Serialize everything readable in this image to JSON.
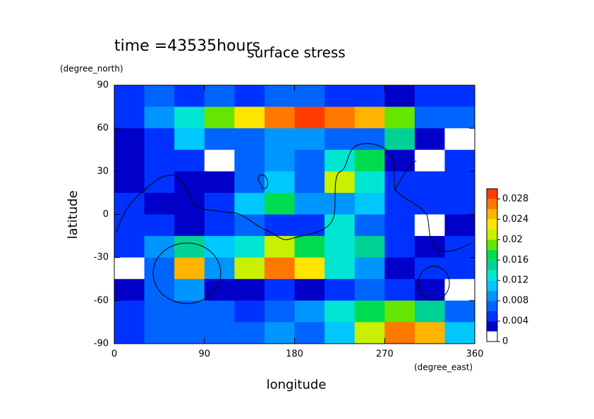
{
  "chart_data": {
    "type": "contour",
    "title": "surface stress",
    "annotation": "time =43535hours",
    "xlabel": "longitude",
    "ylabel": "latitude",
    "xunit": "(degree_east)",
    "yunit": "(degree_north)",
    "xlim": [
      0,
      360
    ],
    "xticks": [
      0,
      90,
      180,
      270,
      360
    ],
    "ylim": [
      -90,
      90
    ],
    "yticks": [
      -90,
      -60,
      -30,
      0,
      30,
      60,
      90
    ],
    "x": [
      15,
      45,
      75,
      105,
      135,
      165,
      195,
      225,
      255,
      285,
      315,
      345
    ],
    "y": [
      82.5,
      67.5,
      52.5,
      37.5,
      22.5,
      7.5,
      -7.5,
      -22.5,
      -37.5,
      -52.5,
      -67.5,
      -82.5
    ],
    "z": [
      [
        0.005,
        0.006,
        0.005,
        0.006,
        0.005,
        0.006,
        0.006,
        0.005,
        0.004,
        0.003,
        0.004,
        0.005
      ],
      [
        0.004,
        0.008,
        0.012,
        0.018,
        0.022,
        0.026,
        0.028,
        0.026,
        0.024,
        0.018,
        0.006,
        0.006
      ],
      [
        0.002,
        0.004,
        0.01,
        0.006,
        0.006,
        0.008,
        0.008,
        0.006,
        0.006,
        0.014,
        0.003,
        0.001
      ],
      [
        0.003,
        0.004,
        0.004,
        0.001,
        0.006,
        0.008,
        0.006,
        0.012,
        0.016,
        0.003,
        0.001,
        0.004
      ],
      [
        0.002,
        0.004,
        0.003,
        0.002,
        0.006,
        0.01,
        0.006,
        0.02,
        0.012,
        0.004,
        0.004,
        0.004
      ],
      [
        0.004,
        0.002,
        0.002,
        0.004,
        0.01,
        0.016,
        0.008,
        0.008,
        0.01,
        0.005,
        0.004,
        0.004
      ],
      [
        0.004,
        0.004,
        0.003,
        0.004,
        0.006,
        0.004,
        0.004,
        0.012,
        0.006,
        0.004,
        0.001,
        0.003
      ],
      [
        0.004,
        0.008,
        0.014,
        0.01,
        0.012,
        0.02,
        0.016,
        0.012,
        0.014,
        0.004,
        0.002,
        0.004
      ],
      [
        0.001,
        0.006,
        0.024,
        0.008,
        0.02,
        0.026,
        0.022,
        0.012,
        0.008,
        0.003,
        0.004,
        0.004
      ],
      [
        0.003,
        0.006,
        0.008,
        0.003,
        0.002,
        0.004,
        0.003,
        0.004,
        0.006,
        0.004,
        0.002,
        0.001
      ],
      [
        0.004,
        0.006,
        0.006,
        0.006,
        0.004,
        0.006,
        0.008,
        0.012,
        0.016,
        0.018,
        0.014,
        0.006
      ],
      [
        0.004,
        0.006,
        0.006,
        0.006,
        0.006,
        0.008,
        0.006,
        0.01,
        0.02,
        0.026,
        0.024,
        0.01
      ]
    ],
    "clevels": [
      0,
      0.002,
      0.004,
      0.006,
      0.008,
      0.01,
      0.012,
      0.014,
      0.016,
      0.018,
      0.02,
      0.022,
      0.024,
      0.026,
      0.028,
      0.03
    ],
    "colors": [
      "#ffffff",
      "#0000c8",
      "#0032ff",
      "#0064ff",
      "#0096ff",
      "#00c8ff",
      "#00e6d2",
      "#00d296",
      "#00dc50",
      "#64e600",
      "#c8f000",
      "#ffe600",
      "#ffb400",
      "#ff7800",
      "#ff3c00"
    ],
    "cticks": [
      0,
      0.004,
      0.008,
      0.012,
      0.016,
      0.02,
      0.024,
      0.028
    ]
  }
}
